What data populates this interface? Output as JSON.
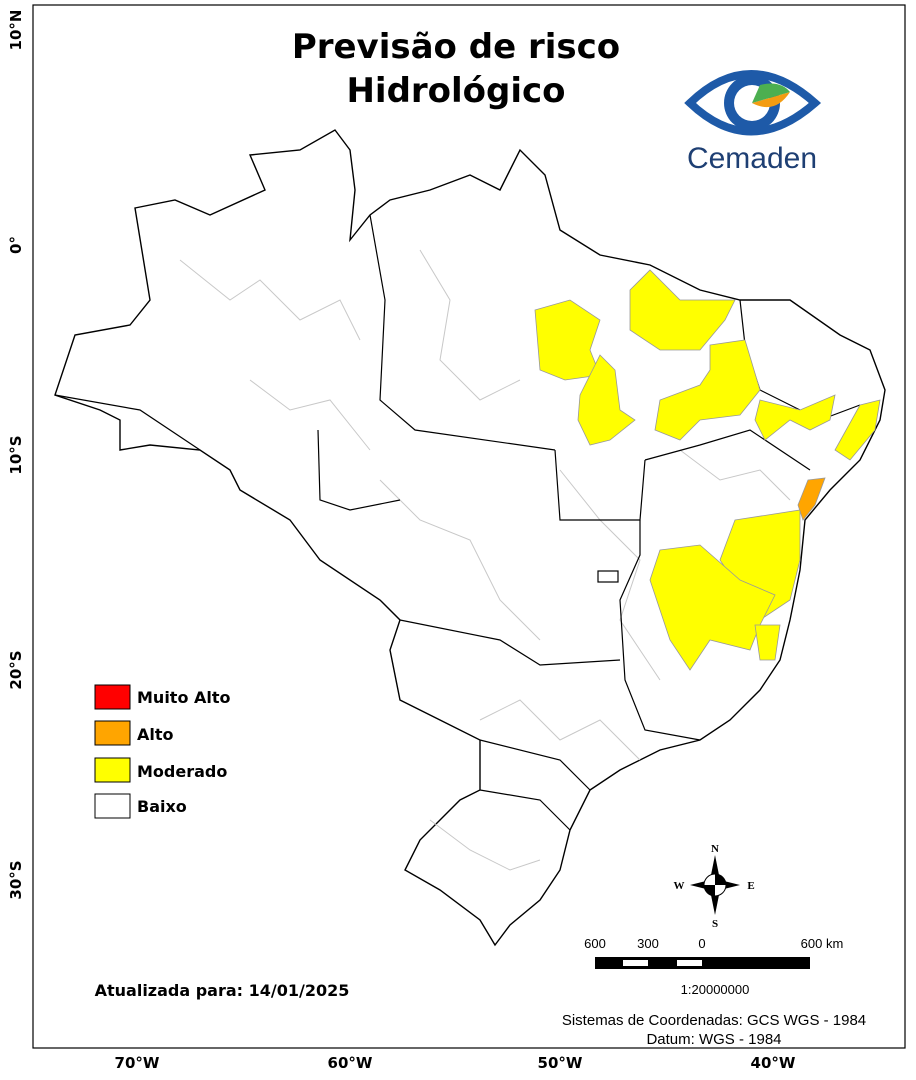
{
  "header": {
    "title_lines": [
      "Previsão de risco",
      "Hidrológico"
    ]
  },
  "logo": {
    "text": "Cemaden"
  },
  "legend": {
    "items": [
      {
        "label": "Muito Alto",
        "color": "#ff0000"
      },
      {
        "label": "Alto",
        "color": "#ffa500"
      },
      {
        "label": "Moderado",
        "color": "#ffff00"
      },
      {
        "label": "Baixo",
        "color": "#ffffff"
      }
    ]
  },
  "axes": {
    "longitude_labels": [
      "70°W",
      "60°W",
      "50°W",
      "40°W"
    ],
    "latitude_labels": [
      "10°N",
      "0°",
      "10°S",
      "20°S",
      "30°S"
    ]
  },
  "compass": {
    "north": "N",
    "south": "S",
    "east": "E",
    "west": "W"
  },
  "scale": {
    "labels": [
      "600",
      "300",
      "0",
      "600 km"
    ],
    "ratio": "1:20000000"
  },
  "footer": {
    "date": "Atualizada para: 14/01/2025",
    "crs": "Sistemas de Coordenadas: GCS WGS - 1984",
    "datum": "Datum: WGS - 1984"
  }
}
